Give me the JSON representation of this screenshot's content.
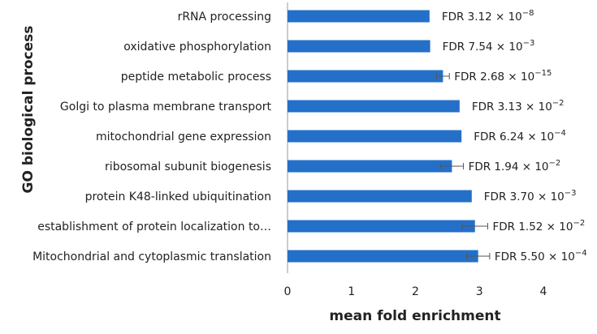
{
  "chart_data": {
    "type": "bar",
    "orientation": "horizontal",
    "xlabel": "mean fold enrichment",
    "ylabel": "GO biological process",
    "xlim": [
      0,
      4
    ],
    "xticks": [
      "0",
      "1",
      "2",
      "3",
      "4"
    ],
    "bar_color": "#2470c9",
    "categories": [
      "rRNA processing",
      "oxidative phosphorylation",
      "peptide metabolic process",
      "Golgi to plasma membrane transport",
      "mitochondrial gene expression",
      "ribosomal subunit biogenesis",
      "protein K48-linked ubiquitination",
      "establishment of protein localization to…",
      "Mitochondrial and cytoplasmic translation"
    ],
    "values": [
      2.22,
      2.23,
      2.43,
      2.69,
      2.72,
      2.57,
      2.88,
      2.93,
      2.98
    ],
    "error": [
      0,
      0,
      0.1,
      0,
      0,
      0.18,
      0,
      0.2,
      0.18
    ],
    "annotations": [
      {
        "base": "FDR 3.12 × 10",
        "exp": "−8"
      },
      {
        "base": "FDR 7.54 × 10",
        "exp": "−3"
      },
      {
        "base": "FDR 2.68 × 10",
        "exp": "−15"
      },
      {
        "base": "FDR 3.13 × 10",
        "exp": "−2"
      },
      {
        "base": "FDR 6.24 × 10",
        "exp": "−4"
      },
      {
        "base": "FDR 1.94 × 10",
        "exp": "−2"
      },
      {
        "base": "FDR 3.70 × 10",
        "exp": "−3"
      },
      {
        "base": "FDR 1.52 × 10",
        "exp": "−2"
      },
      {
        "base": "FDR 5.50 × 10",
        "exp": "−4"
      }
    ]
  }
}
